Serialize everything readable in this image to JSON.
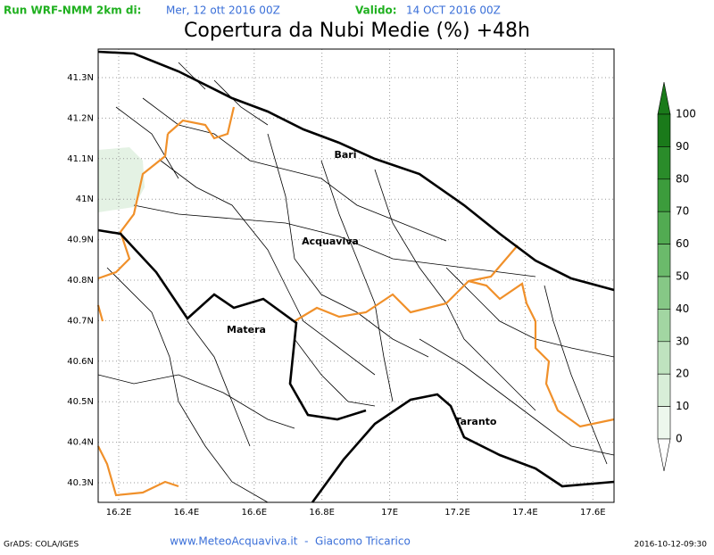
{
  "header": {
    "run_label": "Run WRF-NMM 2km di:",
    "run_date": "Mer, 12 ott 2016 00Z",
    "valid_label": "Valido:",
    "valid_date": "14 OCT 2016 00Z"
  },
  "title": "Copertura da Nubi Medie (%) +48h",
  "map": {
    "lat_labels": [
      "41.3N",
      "41.2N",
      "41.1N",
      "41N",
      "40.9N",
      "40.8N",
      "40.7N",
      "40.6N",
      "40.5N",
      "40.4N",
      "40.3N"
    ],
    "lon_labels": [
      "16.2E",
      "16.4E",
      "16.6E",
      "16.8E",
      "17E",
      "17.2E",
      "17.4E",
      "17.6E"
    ],
    "cities": [
      "Bari",
      "Acquaviva",
      "Matera",
      "Taranto"
    ]
  },
  "legend": {
    "levels": [
      100,
      90,
      80,
      70,
      60,
      50,
      40,
      30,
      20,
      10,
      0
    ]
  },
  "footer": {
    "left": "GrADS: COLA/IGES",
    "center": "www.MeteoAcquaviva.it  -  Giacomo Tricarico",
    "right": "2016-10-12-09:30"
  }
}
